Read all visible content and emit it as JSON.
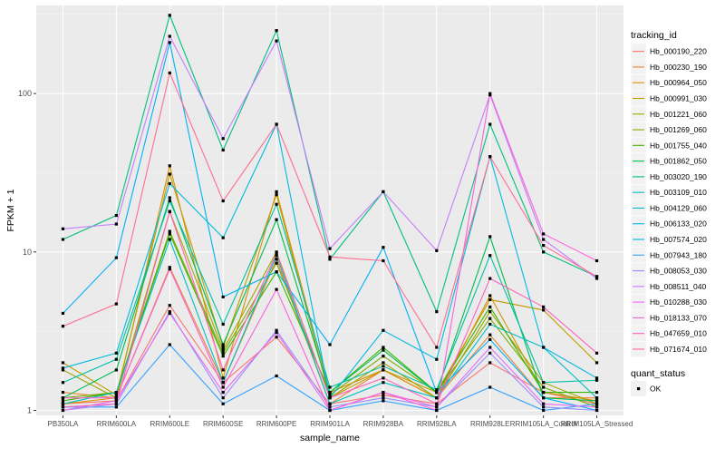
{
  "chart_data": {
    "type": "line",
    "xlabel": "sample_name",
    "ylabel": "FPKM + 1",
    "y_scale": "log10",
    "ylim": [
      0.93,
      360
    ],
    "y_ticks": [
      1,
      10,
      100
    ],
    "y_tick_labels": [
      "1",
      "10",
      "100"
    ],
    "grid": true,
    "panel_background": "#ebebeb",
    "categories": [
      "PB350LA",
      "RRIM600LA",
      "RRIM600LE",
      "RRIM600SE",
      "RRIM600PE",
      "RRIM901LA",
      "RRIM928BA",
      "RRIM928LA",
      "RRIM928LE",
      "RRIM105LA_Control",
      "RRIM105LA_Stressed"
    ],
    "series": [
      {
        "name": "Hb_000190_220",
        "color": "#F8766D",
        "values": [
          1.1,
          1.15,
          4.6,
          1.5,
          2.9,
          1.1,
          1.25,
          1.1,
          2.0,
          1.3,
          1.1
        ]
      },
      {
        "name": "Hb_000230_190",
        "color": "#EA8331",
        "values": [
          1.3,
          1.2,
          8.0,
          1.5,
          9.0,
          1.1,
          1.8,
          1.2,
          3.0,
          1.2,
          1.2
        ]
      },
      {
        "name": "Hb_000964_050",
        "color": "#D89000",
        "values": [
          1.1,
          1.2,
          35,
          1.6,
          24,
          1.3,
          1.8,
          1.2,
          5.3,
          1.3,
          1.15
        ]
      },
      {
        "name": "Hb_000991_030",
        "color": "#C09B00",
        "values": [
          2.0,
          1.25,
          31,
          2.5,
          23,
          1.2,
          1.8,
          1.3,
          5.0,
          4.3,
          2.0
        ]
      },
      {
        "name": "Hb_001221_060",
        "color": "#A3A500",
        "values": [
          1.8,
          1.2,
          18,
          2.4,
          10,
          1.2,
          2.0,
          1.2,
          4.2,
          1.5,
          1.1
        ]
      },
      {
        "name": "Hb_001269_060",
        "color": "#7CAE00",
        "values": [
          1.2,
          1.3,
          13.5,
          2.3,
          8.5,
          1.25,
          2.2,
          1.3,
          3.8,
          1.4,
          1.05
        ]
      },
      {
        "name": "Hb_001755_040",
        "color": "#39B600",
        "values": [
          1.15,
          1.3,
          13,
          2.2,
          7.5,
          1.3,
          2.5,
          1.3,
          4.5,
          1.3,
          1.3
        ]
      },
      {
        "name": "Hb_001862_050",
        "color": "#00BB4E",
        "values": [
          1.2,
          1.8,
          22,
          2.6,
          16,
          1.3,
          2.4,
          1.3,
          12.5,
          1.2,
          1.15
        ]
      },
      {
        "name": "Hb_003020_190",
        "color": "#00BF7D",
        "values": [
          12.0,
          17.0,
          312,
          44,
          250,
          9.0,
          24,
          4.2,
          64,
          10.0,
          7.0
        ]
      },
      {
        "name": "Hb_003109_010",
        "color": "#00C1A3",
        "values": [
          1.5,
          2.1,
          21,
          3.5,
          20,
          1.4,
          1.9,
          1.35,
          9.5,
          1.5,
          1.55
        ]
      },
      {
        "name": "Hb_004129_060",
        "color": "#00BFC4",
        "values": [
          1.1,
          1.3,
          12,
          1.5,
          9.5,
          1.1,
          1.5,
          1.2,
          3.5,
          2.5,
          1.2
        ]
      },
      {
        "name": "Hb_006133_020",
        "color": "#00BAE0",
        "values": [
          1.85,
          2.3,
          27,
          12.3,
          64,
          1.2,
          3.2,
          2.1,
          40,
          2.5,
          1.6
        ]
      },
      {
        "name": "Hb_007574_020",
        "color": "#00B0F6",
        "values": [
          4.1,
          9.2,
          210,
          5.2,
          7.5,
          2.6,
          10.7,
          1.3,
          2.8,
          1.2,
          1.0
        ]
      },
      {
        "name": "Hb_007943_180",
        "color": "#35A2FF",
        "values": [
          1.05,
          1.05,
          2.6,
          1.1,
          1.65,
          1.0,
          1.15,
          1.0,
          1.4,
          1.0,
          1.1
        ]
      },
      {
        "name": "Hb_008053_030",
        "color": "#9590FF",
        "values": [
          1.0,
          1.1,
          4.2,
          1.2,
          3.2,
          1.05,
          1.2,
          1.05,
          2.3,
          1.05,
          1.0
        ]
      },
      {
        "name": "Hb_008511_040",
        "color": "#C77CFF",
        "values": [
          14.0,
          15.0,
          230,
          52,
          215,
          10.5,
          24,
          10.2,
          98,
          12.0,
          6.8
        ]
      },
      {
        "name": "Hb_010288_030",
        "color": "#E76BF3",
        "values": [
          1.0,
          1.15,
          4.1,
          1.3,
          3.1,
          1.0,
          1.3,
          1.05,
          2.5,
          1.1,
          1.05
        ]
      },
      {
        "name": "Hb_018133_070",
        "color": "#FA62DB",
        "values": [
          1.2,
          1.2,
          7.8,
          1.4,
          5.8,
          1.0,
          1.3,
          1.0,
          100,
          13.0,
          8.8
        ]
      },
      {
        "name": "Hb_047659_010",
        "color": "#FF62BC",
        "values": [
          1.05,
          1.1,
          18,
          1.8,
          9.8,
          1.2,
          1.6,
          1.1,
          6.8,
          4.5,
          2.3
        ]
      },
      {
        "name": "Hb_071674_010",
        "color": "#FF6C91",
        "values": [
          3.4,
          4.7,
          135,
          21,
          64,
          9.3,
          8.8,
          2.5,
          40,
          11.0,
          7.0
        ]
      }
    ],
    "legend": {
      "position": "right",
      "title": "tracking_id",
      "shape_title": "quant_status",
      "shape_label": "OK"
    }
  }
}
